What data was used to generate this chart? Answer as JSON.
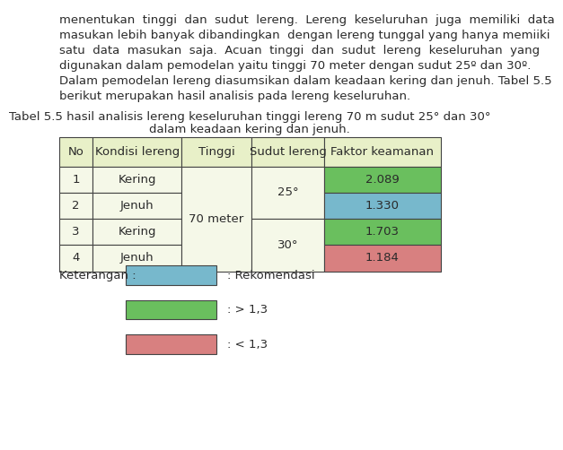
{
  "para_lines": [
    "menentukan  tinggi  dan  sudut  lereng.  Lereng  keseluruhan  juga  memiliki  data",
    "masukan lebih banyak dibandingkan  dengan lereng tunggal yang hanya memiiki",
    "satu  data  masukan  saja.  Acuan  tinggi  dan  sudut  lereng  keseluruhan  yang",
    "digunakan dalam pemodelan yaitu tinggi 70 meter dengan sudut 25º dan 30º.",
    "Dalam pemodelan lereng diasumsikan dalam keadaan kering dan jenuh. Tabel 5.5",
    "berikut merupakan hasil analisis pada lereng keseluruhan."
  ],
  "title_line1": "Tabel 5.5 hasil analisis lereng keseluruhan tinggi lereng 70 m sudut 25° dan 30°",
  "title_line2": "dalam keadaan kering dan jenuh.",
  "headers": [
    "No",
    "Kondisi lereng",
    "Tinggi",
    "Sudut lereng",
    "Faktor keamanan"
  ],
  "rows": [
    {
      "no": "1",
      "kondisi": "Kering",
      "faktor": "2.089",
      "color": "#6abf5e"
    },
    {
      "no": "2",
      "kondisi": "Jenuh",
      "faktor": "1.330",
      "color": "#77b8cc"
    },
    {
      "no": "3",
      "kondisi": "Kering",
      "faktor": "1.703",
      "color": "#6abf5e"
    },
    {
      "no": "4",
      "kondisi": "Jenuh",
      "faktor": "1.184",
      "color": "#d88080"
    }
  ],
  "tinggi_text": "70 meter",
  "sudut_25": "25°",
  "sudut_30": "30°",
  "header_bg": "#e8f0c8",
  "row_bg": "#f5f8e8",
  "border_color": "#444444",
  "text_color": "#2a2a2a",
  "legend_items": [
    {
      "color": "#77b8cc",
      "label": ": Rekomendasi"
    },
    {
      "color": "#6abf5e",
      "label": ": > 1,3"
    },
    {
      "color": "#d88080",
      "label": ": < 1,3"
    }
  ],
  "keterangan_label": "Keterangan :",
  "font_size": 9.5,
  "title_font_size": 9.5,
  "para_font_size": 9.5
}
